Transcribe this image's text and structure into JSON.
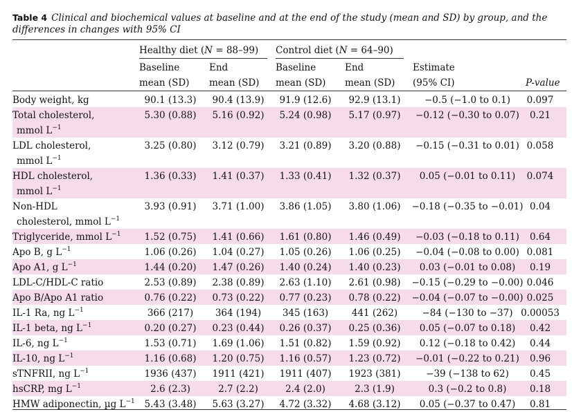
{
  "table": {
    "label": "Table 4",
    "caption": "Clinical and biochemical values at baseline and at the end of the study (mean and SD) by group, and the differences in changes with 95% CI",
    "groups": {
      "healthy": {
        "prefix": "Healthy diet (",
        "n": "N",
        "suffix": " = 88–99)"
      },
      "control": {
        "prefix": "Control diet (",
        "n": "N",
        "suffix": " = 64–90)"
      }
    },
    "header": {
      "hb1": "Baseline",
      "hb2": "mean (SD)",
      "he1": "End",
      "he2": "mean (SD)",
      "cb1": "Baseline",
      "cb2": "mean (SD)",
      "ce1": "End",
      "ce2": "mean (SD)",
      "est1": "Estimate",
      "est2": "(95% CI)",
      "pv": "P-value"
    },
    "rows": [
      {
        "l1": "Body weight, kg",
        "l2": "",
        "sup": "",
        "hb": "90.1 (13.3)",
        "he": "90.4 (13.9)",
        "cb": "91.9 (12.6)",
        "ce": "92.9 (13.1)",
        "est": "−0.5 (−1.0 to 0.1)",
        "p": "0.097",
        "shade": false
      },
      {
        "l1": "Total cholesterol,",
        "l2": "mmol L",
        "sup": "−1",
        "hb": "5.30 (0.88)",
        "he": "5.16 (0.92)",
        "cb": "5.24 (0.98)",
        "ce": "5.17 (0.97)",
        "est": "−0.12 (−0.30 to 0.07)",
        "p": "0.21",
        "shade": true
      },
      {
        "l1": "LDL cholesterol,",
        "l2": "mmol L",
        "sup": "−1",
        "hb": "3.25 (0.80)",
        "he": "3.12 (0.79)",
        "cb": "3.21 (0.89)",
        "ce": "3.20 (0.88)",
        "est": "−0.15 (−0.31 to 0.01)",
        "p": "0.058",
        "shade": false
      },
      {
        "l1": "HDL cholesterol,",
        "l2": "mmol L",
        "sup": "−1",
        "hb": "1.36 (0.33)",
        "he": "1.41 (0.37)",
        "cb": "1.33 (0.41)",
        "ce": "1.32 (0.37)",
        "est": "0.05 (−0.01 to 0.11)",
        "p": "0.074",
        "shade": true
      },
      {
        "l1": "Non-HDL",
        "l2": "cholesterol, mmol L",
        "sup": "−1",
        "hb": "3.93 (0.91)",
        "he": "3.71 (1.00)",
        "cb": "3.86 (1.05)",
        "ce": "3.80 (1.06)",
        "est": "−0.18 (−0.35 to −0.01)",
        "p": "0.04",
        "shade": false
      },
      {
        "l1": "Triglyceride, mmol L",
        "l2": "",
        "sup": "−1",
        "hb": "1.52 (0.75)",
        "he": "1.41 (0.66)",
        "cb": "1.61 (0.80)",
        "ce": "1.46 (0.49)",
        "est": "−0.03 (−0.18 to 0.11)",
        "p": "0.64",
        "shade": true
      },
      {
        "l1": "Apo B, g L",
        "l2": "",
        "sup": "−1",
        "hb": "1.06 (0.26)",
        "he": "1.04 (0.27)",
        "cb": "1.05 (0.26)",
        "ce": "1.06 (0.25)",
        "est": "−0.04 (−0.08 to 0.00)",
        "p": "0.081",
        "shade": false
      },
      {
        "l1": "Apo A1, g L",
        "l2": "",
        "sup": "−1",
        "hb": "1.44 (0.20)",
        "he": "1.47 (0.26)",
        "cb": "1.40 (0.24)",
        "ce": "1.40 (0.23)",
        "est": "0.03 (−0.01 to 0.08)",
        "p": "0.19",
        "shade": true
      },
      {
        "l1": "LDL-C/HDL-C ratio",
        "l2": "",
        "sup": "",
        "hb": "2.53 (0.89)",
        "he": "2.38 (0.89)",
        "cb": "2.63 (1.10)",
        "ce": "2.61 (0.98)",
        "est": "−0.15 (−0.29 to −0.00)",
        "p": "0.046",
        "shade": false
      },
      {
        "l1": "Apo B/Apo A1 ratio",
        "l2": "",
        "sup": "",
        "hb": "0.76 (0.22)",
        "he": "0.73 (0.22)",
        "cb": "0.77 (0.23)",
        "ce": "0.78 (0.22)",
        "est": "−0.04 (−0.07 to −0.00)",
        "p": "0.025",
        "shade": true
      },
      {
        "l1": "IL-1 Ra, ng L",
        "l2": "",
        "sup": "−1",
        "hb": "366 (217)",
        "he": "364 (194)",
        "cb": "345 (163)",
        "ce": "441 (262)",
        "est": "−84 (−130 to −37)",
        "p": "0.00053",
        "shade": false
      },
      {
        "l1": "IL-1 beta, ng L",
        "l2": "",
        "sup": "−1",
        "hb": "0.20 (0.27)",
        "he": "0.23 (0.44)",
        "cb": "0.26 (0.37)",
        "ce": "0.25 (0.36)",
        "est": "0.05 (−0.07 to 0.18)",
        "p": "0.42",
        "shade": true
      },
      {
        "l1": "IL-6, ng L",
        "l2": "",
        "sup": "−1",
        "hb": "1.53 (0.71)",
        "he": "1.69 (1.06)",
        "cb": "1.51 (0.82)",
        "ce": "1.59 (0.92)",
        "est": "0.12 (−0.18 to 0.42)",
        "p": "0.44",
        "shade": false
      },
      {
        "l1": "IL-10, ng L",
        "l2": "",
        "sup": "−1",
        "hb": "1.16 (0.68)",
        "he": "1.20 (0.75)",
        "cb": "1.16 (0.57)",
        "ce": "1.23 (0.72)",
        "est": "−0.01 (−0.22 to 0.21)",
        "p": "0.96",
        "shade": true
      },
      {
        "l1": "sTNFRII, ng L",
        "l2": "",
        "sup": "−1",
        "hb": "1936 (437)",
        "he": "1911 (421)",
        "cb": "1911 (407)",
        "ce": "1923 (381)",
        "est": "−39 (−138 to 62)",
        "p": "0.45",
        "shade": false
      },
      {
        "l1": "hsCRP, mg L",
        "l2": "",
        "sup": "−1",
        "hb": "2.6 (2.3)",
        "he": "2.7 (2.2)",
        "cb": "2.4 (2.0)",
        "ce": "2.3 (1.9)",
        "est": "0.3 (−0.2 to 0.8)",
        "p": "0.18",
        "shade": true
      },
      {
        "l1": "HMW adiponectin, µg L",
        "l2": "",
        "sup": "−1",
        "hb": "5.43 (3.48)",
        "he": "5.63 (3.27)",
        "cb": "4.72 (3.32)",
        "ce": "4.68 (3.12)",
        "est": "0.05 (−0.37 to 0.47)",
        "p": "0.81",
        "shade": false
      }
    ]
  }
}
